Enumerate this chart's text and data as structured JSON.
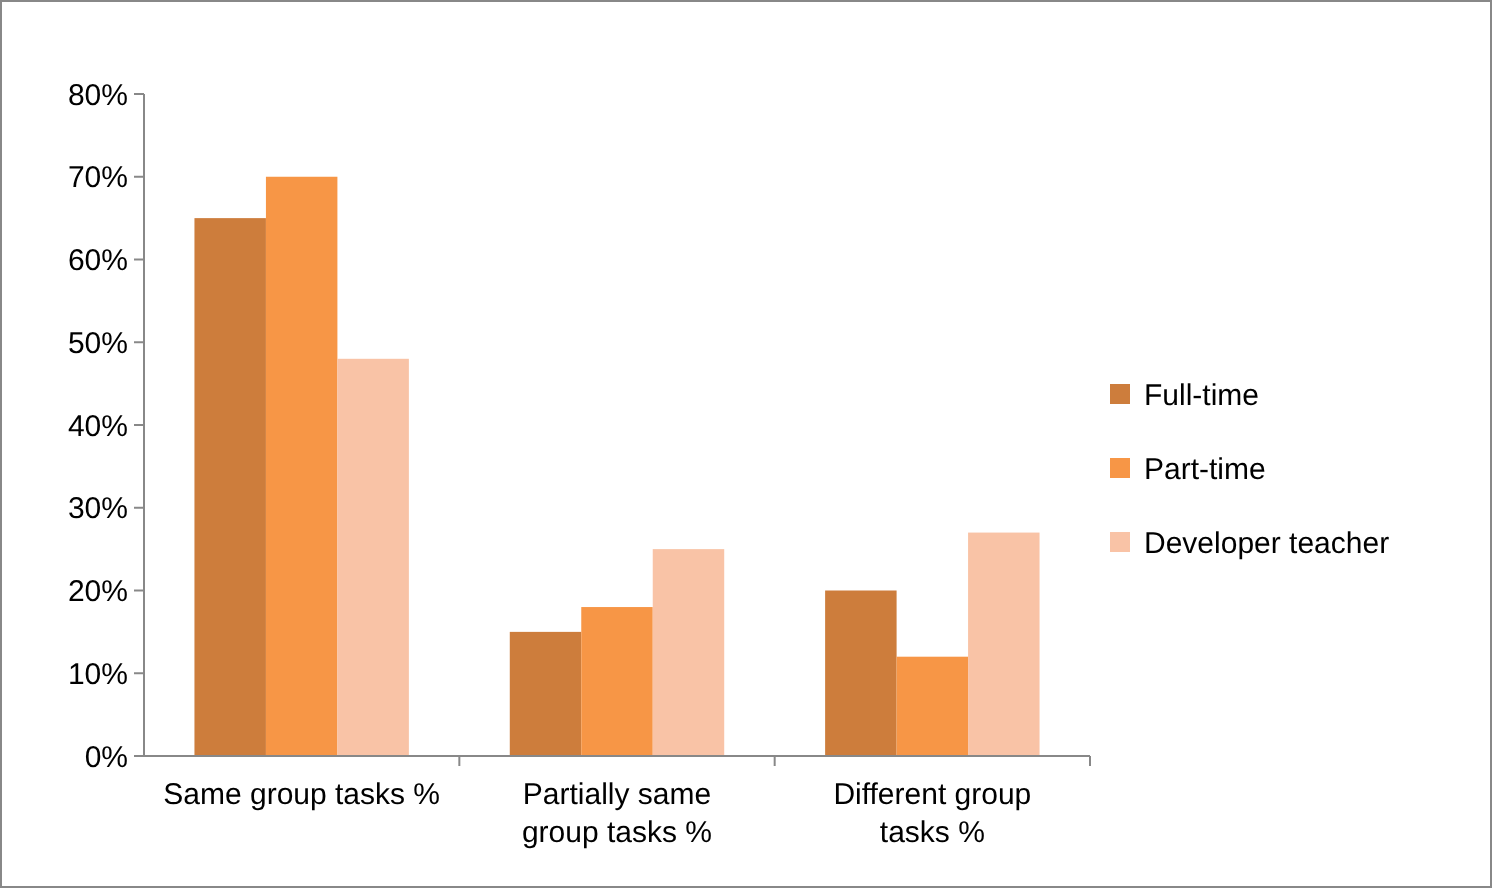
{
  "chart_data": {
    "type": "bar",
    "categories": [
      "Same group tasks %",
      "Partially same group tasks %",
      "Different group tasks %"
    ],
    "series": [
      {
        "name": "Full-time",
        "color": "#cd7d3c",
        "values": [
          65,
          15,
          20
        ]
      },
      {
        "name": "Part-time",
        "color": "#f79646",
        "values": [
          70,
          18,
          12
        ]
      },
      {
        "name": "Developer teacher",
        "color": "#f9c3a6",
        "values": [
          48,
          25,
          27
        ]
      }
    ],
    "ylim": [
      0,
      80
    ],
    "yticks": [
      {
        "value": 0,
        "label": "0%"
      },
      {
        "value": 10,
        "label": "10%"
      },
      {
        "value": 20,
        "label": "20%"
      },
      {
        "value": 30,
        "label": "30%"
      },
      {
        "value": 40,
        "label": "40%"
      },
      {
        "value": 50,
        "label": "50%"
      },
      {
        "value": 60,
        "label": "60%"
      },
      {
        "value": 70,
        "label": "70%"
      },
      {
        "value": 80,
        "label": "80%"
      }
    ],
    "grid": false,
    "legend": "right"
  }
}
